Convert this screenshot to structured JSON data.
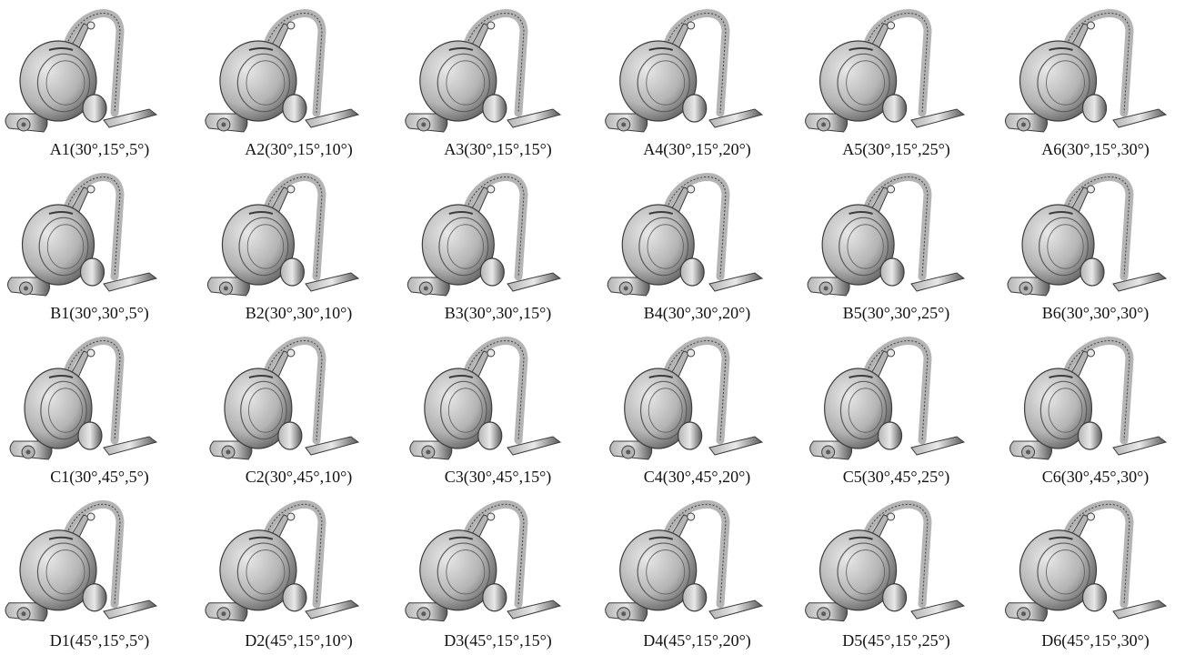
{
  "grid": {
    "rows": [
      {
        "row_id": "A",
        "cells": [
          {
            "label": "A1(30°,15°,5°)",
            "angles": [
              30,
              15,
              5
            ]
          },
          {
            "label": "A2(30°,15°,10°)",
            "angles": [
              30,
              15,
              10
            ]
          },
          {
            "label": "A3(30°,15°,15°)",
            "angles": [
              30,
              15,
              15
            ]
          },
          {
            "label": "A4(30°,15°,20°)",
            "angles": [
              30,
              15,
              20
            ]
          },
          {
            "label": "A5(30°,15°,25°)",
            "angles": [
              30,
              15,
              25
            ]
          },
          {
            "label": "A6(30°,15°,30°)",
            "angles": [
              30,
              15,
              30
            ]
          }
        ]
      },
      {
        "row_id": "B",
        "cells": [
          {
            "label": "B1(30°,30°,5°)",
            "angles": [
              30,
              30,
              5
            ]
          },
          {
            "label": "B2(30°,30°,10°)",
            "angles": [
              30,
              30,
              10
            ]
          },
          {
            "label": "B3(30°,30°,15°)",
            "angles": [
              30,
              30,
              15
            ]
          },
          {
            "label": "B4(30°,30°,20°)",
            "angles": [
              30,
              30,
              20
            ]
          },
          {
            "label": "B5(30°,30°,25°)",
            "angles": [
              30,
              30,
              25
            ]
          },
          {
            "label": "B6(30°,30°,30°)",
            "angles": [
              30,
              30,
              30
            ]
          }
        ]
      },
      {
        "row_id": "C",
        "cells": [
          {
            "label": "C1(30°,45°,5°)",
            "angles": [
              30,
              45,
              5
            ]
          },
          {
            "label": "C2(30°,45°,10°)",
            "angles": [
              30,
              45,
              10
            ]
          },
          {
            "label": "C3(30°,45°,15°)",
            "angles": [
              30,
              45,
              15
            ]
          },
          {
            "label": "C4(30°,45°,20°)",
            "angles": [
              30,
              45,
              20
            ]
          },
          {
            "label": "C5(30°,45°,25°)",
            "angles": [
              30,
              45,
              25
            ]
          },
          {
            "label": "C6(30°,45°,30°)",
            "angles": [
              30,
              45,
              30
            ]
          }
        ]
      },
      {
        "row_id": "D",
        "cells": [
          {
            "label": "D1(45°,15°,5°)",
            "angles": [
              45,
              15,
              5
            ]
          },
          {
            "label": "D2(45°,15°,10°)",
            "angles": [
              45,
              15,
              10
            ]
          },
          {
            "label": "D3(45°,15°,15°)",
            "angles": [
              45,
              15,
              15
            ]
          },
          {
            "label": "D4(45°,15°,20°)",
            "angles": [
              45,
              15,
              20
            ]
          },
          {
            "label": "D5(45°,15°,25°)",
            "angles": [
              45,
              15,
              25
            ]
          },
          {
            "label": "D6(45°,15°,30°)",
            "angles": [
              45,
              15,
              30
            ]
          }
        ]
      }
    ]
  },
  "colors": {
    "body_light": "#e8e8e8",
    "body_mid": "#b4b4b4",
    "body_dark": "#5a5a5a",
    "outline": "#3c3c3c",
    "caption_text": "#111111",
    "background": "#ffffff"
  }
}
